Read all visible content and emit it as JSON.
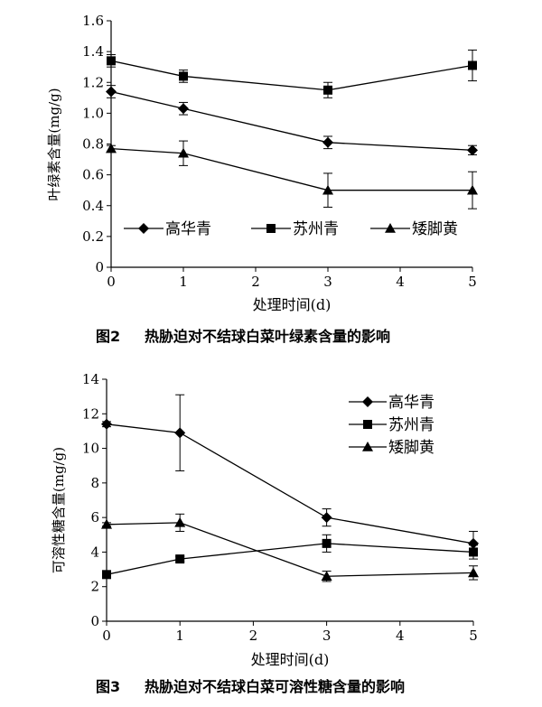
{
  "charts": [
    {
      "caption_num": "图2",
      "caption_text": "热胁迫对不结球白菜叶绿素含量的影响",
      "xlabel": "处理时间(d)",
      "ylabel": "叶绿素含量(mg/g)",
      "x_ticks": [
        "0",
        "1",
        "2",
        "3",
        "4",
        "5"
      ],
      "y_ticks": [
        "0",
        "0.2",
        "0.4",
        "0.6",
        "0.8",
        "1.0",
        "1.2",
        "1.4",
        "1.6"
      ]
    },
    {
      "caption_num": "图3",
      "caption_text": "热胁迫对不结球白菜可溶性糖含量的影响",
      "xlabel": "处理时间(d)",
      "ylabel": "可溶性糖含量(mg/g)",
      "x_ticks": [
        "0",
        "1",
        "2",
        "3",
        "4",
        "5"
      ],
      "y_ticks": [
        "0",
        "2",
        "4",
        "6",
        "8",
        "10",
        "12",
        "14"
      ]
    }
  ],
  "chart_data": [
    {
      "type": "line",
      "xlabel": "处理时间(d)",
      "ylabel": "叶绿素含量(mg/g)",
      "xlim": [
        0,
        5
      ],
      "ylim": [
        0,
        1.6
      ],
      "grid": false,
      "legend_position": "bottom",
      "series": [
        {
          "name": "高华青",
          "marker": "diamond",
          "x": [
            0,
            1,
            3,
            5
          ],
          "y": [
            1.14,
            1.03,
            0.81,
            0.76
          ],
          "err": [
            0.04,
            0.04,
            0.04,
            0.03
          ]
        },
        {
          "name": "苏州青",
          "marker": "square",
          "x": [
            0,
            1,
            3,
            5
          ],
          "y": [
            1.34,
            1.24,
            1.15,
            1.31
          ],
          "err": [
            0.04,
            0.04,
            0.05,
            0.1
          ]
        },
        {
          "name": "矮脚黄",
          "marker": "triangle",
          "x": [
            0,
            1,
            3,
            5
          ],
          "y": [
            0.77,
            0.74,
            0.5,
            0.5
          ],
          "err": [
            0.02,
            0.08,
            0.11,
            0.12
          ]
        }
      ]
    },
    {
      "type": "line",
      "xlabel": "处理时间(d)",
      "ylabel": "可溶性糖含量(mg/g)",
      "xlim": [
        0,
        5
      ],
      "ylim": [
        0,
        14
      ],
      "grid": false,
      "legend_position": "top-right",
      "series": [
        {
          "name": "高华青",
          "marker": "diamond",
          "x": [
            0,
            1,
            3,
            5
          ],
          "y": [
            11.4,
            10.9,
            6.0,
            4.5
          ],
          "err": [
            0.15,
            2.2,
            0.5,
            0.7
          ]
        },
        {
          "name": "苏州青",
          "marker": "square",
          "x": [
            0,
            1,
            3,
            5
          ],
          "y": [
            2.7,
            3.6,
            4.5,
            4.0
          ],
          "err": [
            0.15,
            0.15,
            0.5,
            0.4
          ]
        },
        {
          "name": "矮脚黄",
          "marker": "triangle",
          "x": [
            0,
            1,
            3,
            5
          ],
          "y": [
            5.6,
            5.7,
            2.6,
            2.8
          ],
          "err": [
            0.1,
            0.5,
            0.3,
            0.4
          ]
        }
      ]
    }
  ]
}
